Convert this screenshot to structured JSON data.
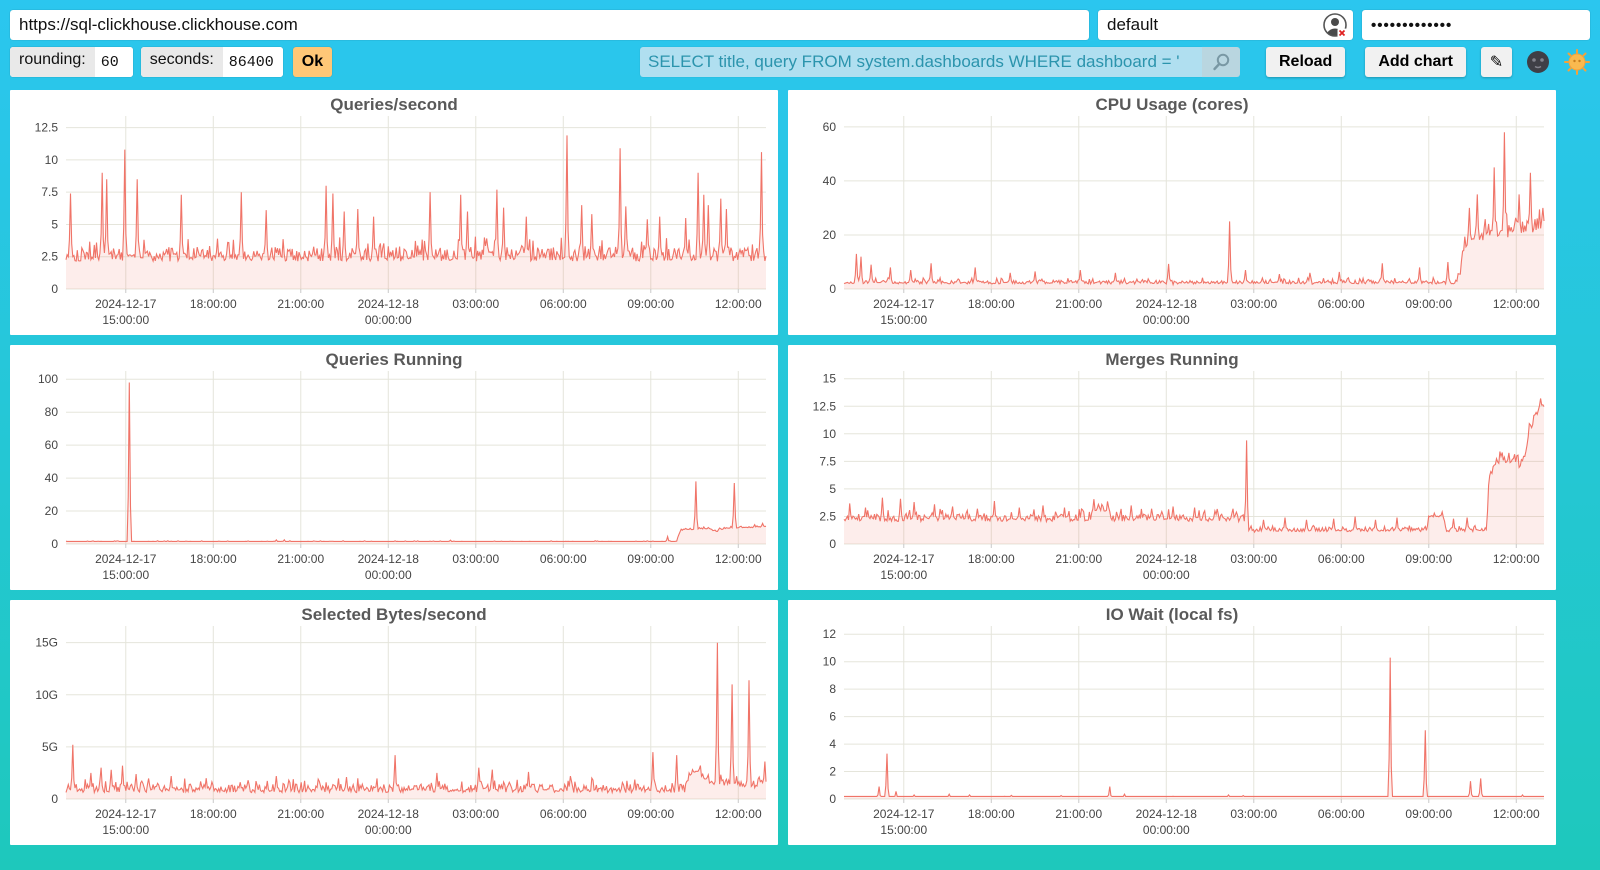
{
  "toolbar": {
    "url": {
      "value": "https://sql-clickhouse.clickhouse.com"
    },
    "user": {
      "value": "default"
    },
    "password": {
      "value": "•••••••••••••"
    },
    "rounding_label": "rounding:",
    "rounding_value": "60",
    "seconds_label": "seconds:",
    "seconds_value": "86400",
    "ok_label": "Ok",
    "query": {
      "value": "SELECT title, query FROM system.dashboards WHERE dashboard = '"
    },
    "reload_label": "Reload",
    "add_chart_label": "Add chart",
    "edit_icon": "✎"
  },
  "colors": {
    "background_top": "#2bc6ef",
    "background_bottom": "#1ec8bc",
    "line": "#f07468",
    "fill": "rgba(240,116,104,0.13)",
    "grid": "#e5e5db",
    "tick_text": "#454545",
    "title_text": "#595959",
    "ok_button": "#ffc777",
    "query_bg": "#b0dff0",
    "query_text": "#2b94ad"
  },
  "x_axis": {
    "ticks": [
      {
        "f": 0.0854,
        "lines": [
          "2024-12-17",
          "15:00:00"
        ]
      },
      {
        "f": 0.2104,
        "lines": [
          "18:00:00"
        ]
      },
      {
        "f": 0.3354,
        "lines": [
          "21:00:00"
        ]
      },
      {
        "f": 0.4604,
        "lines": [
          "2024-12-18",
          "00:00:00"
        ]
      },
      {
        "f": 0.5854,
        "lines": [
          "03:00:00"
        ]
      },
      {
        "f": 0.7104,
        "lines": [
          "06:00:00"
        ]
      },
      {
        "f": 0.8354,
        "lines": [
          "09:00:00"
        ]
      },
      {
        "f": 0.9604,
        "lines": [
          "12:00:00"
        ]
      }
    ]
  },
  "chart_data": [
    {
      "type": "line",
      "title": "Queries/second",
      "ylim": [
        0,
        13.4
      ],
      "seed": 101,
      "yticks": [
        {
          "v": 0,
          "label": "0"
        },
        {
          "v": 2.5,
          "label": "2.5"
        },
        {
          "v": 5,
          "label": "5"
        },
        {
          "v": 7.5,
          "label": "7.5"
        },
        {
          "v": 10,
          "label": "10"
        },
        {
          "v": 12.5,
          "label": "12.5"
        }
      ],
      "baseline": [
        [
          0,
          2.4
        ],
        [
          1,
          2.4
        ]
      ],
      "noise": [
        [
          0,
          1.5
        ],
        [
          1,
          1.5
        ]
      ],
      "spikes": [
        [
          0.006,
          7.4
        ],
        [
          0.052,
          9.0
        ],
        [
          0.058,
          8.5
        ],
        [
          0.084,
          10.8
        ],
        [
          0.102,
          8.5
        ],
        [
          0.165,
          7.3
        ],
        [
          0.251,
          7.5
        ],
        [
          0.286,
          6.1
        ],
        [
          0.372,
          8.0
        ],
        [
          0.381,
          7.4
        ],
        [
          0.398,
          6.0
        ],
        [
          0.416,
          6.2
        ],
        [
          0.439,
          5.6
        ],
        [
          0.521,
          7.5
        ],
        [
          0.564,
          7.3
        ],
        [
          0.574,
          6.0
        ],
        [
          0.615,
          7.7
        ],
        [
          0.625,
          6.3
        ],
        [
          0.658,
          5.6
        ],
        [
          0.716,
          11.9
        ],
        [
          0.737,
          6.5
        ],
        [
          0.752,
          5.8
        ],
        [
          0.791,
          10.9
        ],
        [
          0.799,
          6.4
        ],
        [
          0.831,
          5.4
        ],
        [
          0.848,
          5.6
        ],
        [
          0.886,
          5.5
        ],
        [
          0.903,
          9.0
        ],
        [
          0.911,
          7.3
        ],
        [
          0.918,
          6.5
        ],
        [
          0.935,
          7.0
        ],
        [
          0.944,
          6.2
        ],
        [
          0.993,
          10.6
        ]
      ]
    },
    {
      "type": "line",
      "title": "CPU Usage (cores)",
      "ylim": [
        0,
        64
      ],
      "seed": 202,
      "yticks": [
        {
          "v": 0,
          "label": "0"
        },
        {
          "v": 20,
          "label": "20"
        },
        {
          "v": 40,
          "label": "40"
        },
        {
          "v": 60,
          "label": "60"
        }
      ],
      "baseline": [
        [
          0,
          2.2
        ],
        [
          0.878,
          2.2
        ],
        [
          0.886,
          16
        ],
        [
          0.9,
          19
        ],
        [
          0.94,
          20
        ],
        [
          0.97,
          21
        ],
        [
          1,
          24
        ]
      ],
      "noise": [
        [
          0,
          1.8
        ],
        [
          0.87,
          1.8
        ],
        [
          0.885,
          7
        ],
        [
          1,
          7
        ]
      ],
      "spikes": [
        [
          0.017,
          13
        ],
        [
          0.024,
          12
        ],
        [
          0.038,
          9
        ],
        [
          0.067,
          8
        ],
        [
          0.095,
          7
        ],
        [
          0.124,
          9.5
        ],
        [
          0.188,
          8
        ],
        [
          0.238,
          6
        ],
        [
          0.273,
          6.5
        ],
        [
          0.338,
          7
        ],
        [
          0.387,
          6
        ],
        [
          0.463,
          9.3
        ],
        [
          0.551,
          25
        ],
        [
          0.573,
          7
        ],
        [
          0.622,
          5.5
        ],
        [
          0.665,
          6
        ],
        [
          0.708,
          6.3
        ],
        [
          0.769,
          9.5
        ],
        [
          0.822,
          8
        ],
        [
          0.862,
          10
        ],
        [
          0.893,
          30
        ],
        [
          0.905,
          35
        ],
        [
          0.929,
          45
        ],
        [
          0.944,
          58
        ],
        [
          0.964,
          35
        ],
        [
          0.981,
          43
        ],
        [
          0.998,
          30
        ]
      ]
    },
    {
      "type": "line",
      "title": "Queries Running",
      "ylim": [
        0,
        105
      ],
      "seed": 303,
      "yticks": [
        {
          "v": 0,
          "label": "0"
        },
        {
          "v": 20,
          "label": "20"
        },
        {
          "v": 40,
          "label": "40"
        },
        {
          "v": 60,
          "label": "60"
        },
        {
          "v": 80,
          "label": "80"
        },
        {
          "v": 100,
          "label": "100"
        }
      ],
      "baseline": [
        [
          0,
          1.3
        ],
        [
          0.872,
          1.3
        ],
        [
          0.878,
          8.5
        ],
        [
          0.92,
          9.5
        ],
        [
          0.928,
          7
        ],
        [
          0.94,
          9.5
        ],
        [
          1,
          10.5
        ]
      ],
      "noise": [
        [
          0,
          0.6
        ],
        [
          0.87,
          0.6
        ],
        [
          0.88,
          1.5
        ],
        [
          1,
          1.5
        ]
      ],
      "spikes": [
        [
          0.091,
          98
        ],
        [
          0.3,
          2.5
        ],
        [
          0.55,
          2.3
        ],
        [
          0.86,
          4.5
        ],
        [
          0.9,
          38
        ],
        [
          0.955,
          37
        ],
        [
          0.995,
          12.5
        ]
      ]
    },
    {
      "type": "line",
      "title": "Merges Running",
      "ylim": [
        0,
        15.7
      ],
      "seed": 404,
      "yticks": [
        {
          "v": 0,
          "label": "0"
        },
        {
          "v": 2.5,
          "label": "2.5"
        },
        {
          "v": 5,
          "label": "5"
        },
        {
          "v": 7.5,
          "label": "7.5"
        },
        {
          "v": 10,
          "label": "10"
        },
        {
          "v": 12.5,
          "label": "12.5"
        },
        {
          "v": 15,
          "label": "15"
        }
      ],
      "baseline": [
        [
          0,
          2.2
        ],
        [
          0.352,
          2.2
        ],
        [
          0.355,
          3.1
        ],
        [
          0.378,
          3.1
        ],
        [
          0.382,
          2.2
        ],
        [
          0.572,
          2.2
        ],
        [
          0.578,
          1.2
        ],
        [
          0.832,
          1.2
        ],
        [
          0.836,
          2.5
        ],
        [
          0.856,
          2.5
        ],
        [
          0.86,
          1.2
        ],
        [
          0.918,
          1.2
        ],
        [
          0.922,
          5.8
        ],
        [
          0.932,
          7.3
        ],
        [
          0.958,
          7.6
        ],
        [
          0.962,
          6.8
        ],
        [
          0.972,
          7.5
        ],
        [
          0.978,
          9.8
        ],
        [
          0.985,
          11.2
        ],
        [
          0.993,
          12.2
        ],
        [
          1,
          12.6
        ]
      ],
      "noise": [
        [
          0,
          0.9
        ],
        [
          0.57,
          0.9
        ],
        [
          0.58,
          0.45
        ],
        [
          0.915,
          0.45
        ],
        [
          0.925,
          1.1
        ],
        [
          1,
          1.1
        ]
      ],
      "spikes": [
        [
          0.03,
          3.3
        ],
        [
          0.055,
          4.2
        ],
        [
          0.08,
          4.1
        ],
        [
          0.1,
          3.8
        ],
        [
          0.13,
          3.6
        ],
        [
          0.155,
          3.4
        ],
        [
          0.19,
          3.2
        ],
        [
          0.215,
          3.9
        ],
        [
          0.25,
          3.3
        ],
        [
          0.285,
          3.5
        ],
        [
          0.315,
          3.3
        ],
        [
          0.41,
          3.5
        ],
        [
          0.44,
          3.2
        ],
        [
          0.47,
          3.4
        ],
        [
          0.5,
          3.3
        ],
        [
          0.53,
          3.0
        ],
        [
          0.555,
          3.2
        ],
        [
          0.575,
          9.4
        ],
        [
          0.6,
          2.2
        ],
        [
          0.63,
          2.4
        ],
        [
          0.66,
          2.2
        ],
        [
          0.7,
          2.3
        ],
        [
          0.73,
          2.5
        ],
        [
          0.76,
          2.2
        ],
        [
          0.79,
          2.4
        ],
        [
          0.87,
          2.3
        ],
        [
          0.89,
          2.4
        ],
        [
          0.94,
          8.3
        ],
        [
          0.995,
          13.2
        ]
      ]
    },
    {
      "type": "line",
      "title": "Selected Bytes/second",
      "ylim": [
        0,
        16.6
      ],
      "unit": "G",
      "seed": 505,
      "yticks": [
        {
          "v": 0,
          "label": "0"
        },
        {
          "v": 5,
          "label": "5G"
        },
        {
          "v": 10,
          "label": "10G"
        },
        {
          "v": 15,
          "label": "15G"
        }
      ],
      "baseline": [
        [
          0,
          0.8
        ],
        [
          0.885,
          0.8
        ],
        [
          0.89,
          2.2
        ],
        [
          0.905,
          2.6
        ],
        [
          0.915,
          1.6
        ],
        [
          1,
          1.1
        ]
      ],
      "noise": [
        [
          0,
          1.1
        ],
        [
          0.88,
          1.1
        ],
        [
          0.9,
          0.9
        ],
        [
          1,
          0.9
        ]
      ],
      "spikes": [
        [
          0.01,
          5.2
        ],
        [
          0.035,
          2.5
        ],
        [
          0.05,
          3.0
        ],
        [
          0.065,
          2.8
        ],
        [
          0.08,
          3.2
        ],
        [
          0.1,
          2.4
        ],
        [
          0.15,
          2.2
        ],
        [
          0.2,
          2.0
        ],
        [
          0.26,
          1.8
        ],
        [
          0.3,
          2.2
        ],
        [
          0.36,
          1.9
        ],
        [
          0.4,
          2.1
        ],
        [
          0.47,
          4.2
        ],
        [
          0.53,
          2.5
        ],
        [
          0.59,
          3.0
        ],
        [
          0.66,
          2.6
        ],
        [
          0.72,
          2.2
        ],
        [
          0.838,
          4.5
        ],
        [
          0.872,
          4.2
        ],
        [
          0.93,
          15.0
        ],
        [
          0.952,
          11.0
        ],
        [
          0.975,
          11.4
        ],
        [
          0.998,
          3.6
        ]
      ]
    },
    {
      "type": "line",
      "title": "IO Wait (local fs)",
      "ylim": [
        0,
        12.6
      ],
      "seed": 606,
      "yticks": [
        {
          "v": 0,
          "label": "0"
        },
        {
          "v": 2,
          "label": "2"
        },
        {
          "v": 4,
          "label": "4"
        },
        {
          "v": 6,
          "label": "6"
        },
        {
          "v": 8,
          "label": "8"
        },
        {
          "v": 10,
          "label": "10"
        },
        {
          "v": 12,
          "label": "12"
        }
      ],
      "baseline": [
        [
          0,
          0.06
        ],
        [
          1,
          0.06
        ]
      ],
      "noise": [
        [
          0,
          0.12
        ],
        [
          1,
          0.12
        ]
      ],
      "spikes": [
        [
          0.05,
          0.9
        ],
        [
          0.062,
          3.3
        ],
        [
          0.075,
          0.55
        ],
        [
          0.1,
          0.3
        ],
        [
          0.15,
          0.35
        ],
        [
          0.18,
          0.3
        ],
        [
          0.23,
          0.2
        ],
        [
          0.31,
          0.25
        ],
        [
          0.38,
          0.9
        ],
        [
          0.4,
          0.35
        ],
        [
          0.47,
          0.2
        ],
        [
          0.55,
          0.3
        ],
        [
          0.57,
          0.25
        ],
        [
          0.78,
          10.3
        ],
        [
          0.83,
          5.0
        ],
        [
          0.895,
          1.3
        ],
        [
          0.91,
          1.5
        ],
        [
          0.97,
          0.3
        ]
      ]
    }
  ]
}
